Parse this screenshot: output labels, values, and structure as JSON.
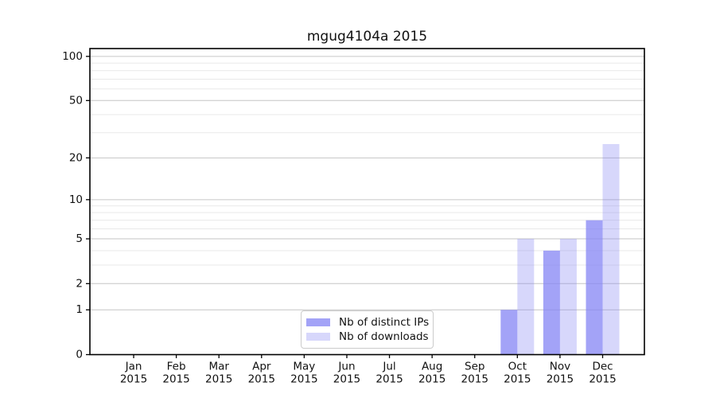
{
  "chart_data": {
    "type": "bar",
    "title": "mgug4104a 2015",
    "categories": [
      "Jan",
      "Feb",
      "Mar",
      "Apr",
      "May",
      "Jun",
      "Jul",
      "Aug",
      "Sep",
      "Oct",
      "Nov",
      "Dec"
    ],
    "x_tick_second_line": "2015",
    "series": [
      {
        "name": "Nb of distinct IPs",
        "color": "rgba(132,132,244,0.75)",
        "values": [
          0,
          0,
          0,
          0,
          0,
          0,
          0,
          0,
          0,
          1,
          4,
          7
        ]
      },
      {
        "name": "Nb of downloads",
        "color": "rgba(132,132,244,0.32)",
        "values": [
          0,
          0,
          0,
          0,
          0,
          0,
          0,
          0,
          0,
          5,
          5,
          25
        ]
      }
    ],
    "yscale": "log1p",
    "ylim": [
      0,
      113
    ],
    "yticks": [
      0,
      1,
      2,
      5,
      10,
      20,
      50,
      100
    ],
    "yticks_minor": [
      3,
      4,
      6,
      7,
      8,
      9,
      30,
      40,
      60,
      70,
      80,
      90
    ],
    "grid": true,
    "colors": {
      "axis": "#000000",
      "text": "#111111",
      "major_grid": "#c6c6c6",
      "minor_grid": "#e9e9e9",
      "legend_border": "#cbcbcb",
      "legend_background": "rgba(255,255,255,0.85)"
    },
    "legend_position": "lower center"
  }
}
